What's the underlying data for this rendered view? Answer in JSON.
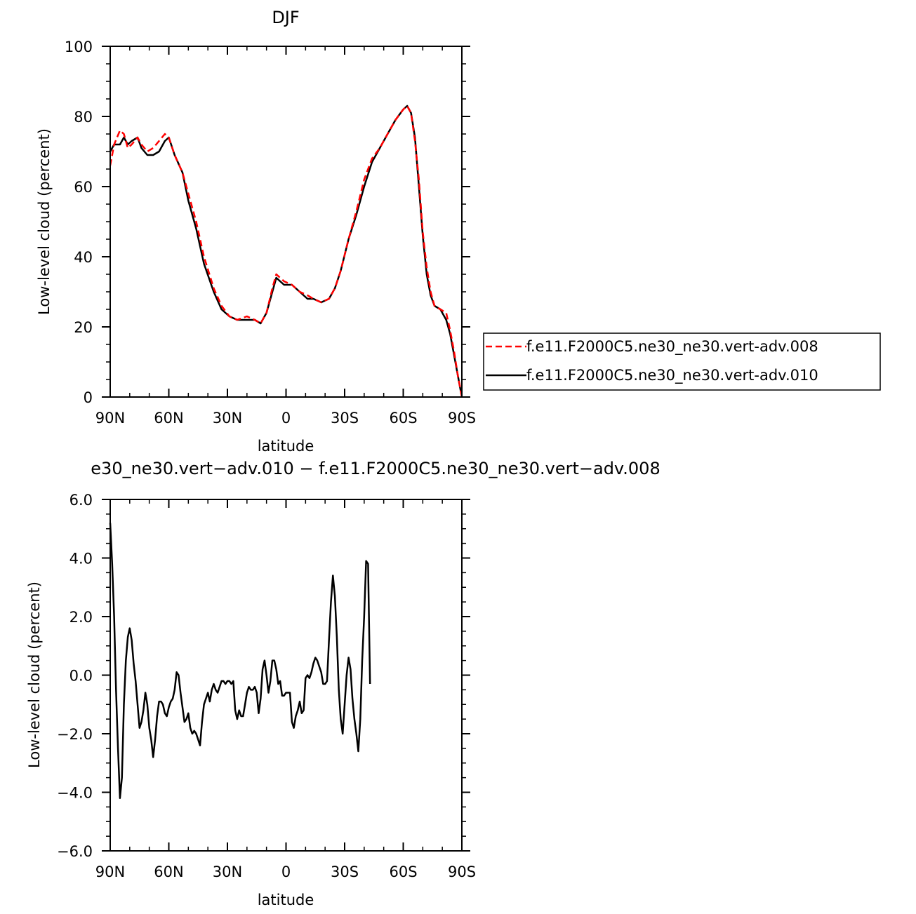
{
  "chart_data": [
    {
      "type": "line",
      "title": "DJF",
      "xlabel": "latitude",
      "ylabel": "Low-level cloud (percent)",
      "xlim": [
        90,
        -90
      ],
      "ylim": [
        0,
        100
      ],
      "x_tick_values": [
        90,
        60,
        30,
        0,
        -30,
        -60,
        -90
      ],
      "x_tick_labels": [
        "90N",
        "60N",
        "30N",
        "0",
        "30S",
        "60S",
        "90S"
      ],
      "y_tick_values": [
        0,
        20,
        40,
        60,
        80,
        100
      ],
      "y_tick_labels": [
        "0",
        "20",
        "40",
        "60",
        "80",
        "100"
      ],
      "legend_position": "right",
      "series": [
        {
          "name": "f.e11.F2000C5.ne30_ne30.vert-adv.008",
          "color": "#ff0000",
          "style": "dashed",
          "points": [
            [
              90,
              66
            ],
            [
              88,
              72
            ],
            [
              85,
              76
            ],
            [
              83,
              75
            ],
            [
              81,
              71
            ],
            [
              79,
              72
            ],
            [
              76,
              74
            ],
            [
              74,
              72
            ],
            [
              71,
              70
            ],
            [
              68,
              71
            ],
            [
              65,
              73
            ],
            [
              62,
              75
            ],
            [
              60,
              74
            ],
            [
              57,
              69
            ],
            [
              53,
              64
            ],
            [
              50,
              58
            ],
            [
              46,
              50
            ],
            [
              42,
              40
            ],
            [
              37,
              31
            ],
            [
              33,
              26
            ],
            [
              29,
              23
            ],
            [
              25,
              22
            ],
            [
              20,
              23
            ],
            [
              16,
              22
            ],
            [
              13,
              21
            ],
            [
              10,
              24
            ],
            [
              7,
              31
            ],
            [
              5,
              35
            ],
            [
              3,
              34
            ],
            [
              1,
              33
            ],
            [
              -3,
              32
            ],
            [
              -7,
              30
            ],
            [
              -11,
              29
            ],
            [
              -14,
              28
            ],
            [
              -18,
              27
            ],
            [
              -22,
              28
            ],
            [
              -25,
              31
            ],
            [
              -28,
              36
            ],
            [
              -32,
              45
            ],
            [
              -36,
              53
            ],
            [
              -40,
              62
            ],
            [
              -44,
              68
            ],
            [
              -48,
              71
            ],
            [
              -52,
              75
            ],
            [
              -56,
              79
            ],
            [
              -60,
              82
            ],
            [
              -62,
              83
            ],
            [
              -64,
              81
            ],
            [
              -66,
              73
            ],
            [
              -68,
              62
            ],
            [
              -70,
              47
            ],
            [
              -72,
              37
            ],
            [
              -74,
              30
            ],
            [
              -76,
              26
            ],
            [
              -79,
              25
            ],
            [
              -82,
              24
            ],
            [
              -84,
              19
            ],
            [
              -86,
              13
            ],
            [
              -88,
              6
            ],
            [
              -90,
              0
            ]
          ]
        },
        {
          "name": "f.e11.F2000C5.ne30_ne30.vert-adv.010",
          "color": "#000000",
          "style": "solid",
          "points": [
            [
              90,
              70
            ],
            [
              88,
              72
            ],
            [
              85,
              72
            ],
            [
              83,
              74
            ],
            [
              81,
              72
            ],
            [
              79,
              73
            ],
            [
              76,
              74
            ],
            [
              74,
              71
            ],
            [
              71,
              69
            ],
            [
              68,
              69
            ],
            [
              65,
              70
            ],
            [
              62,
              73
            ],
            [
              60,
              74
            ],
            [
              57,
              69
            ],
            [
              53,
              64
            ],
            [
              50,
              56
            ],
            [
              46,
              48
            ],
            [
              42,
              38
            ],
            [
              37,
              30
            ],
            [
              33,
              25
            ],
            [
              29,
              23
            ],
            [
              25,
              22
            ],
            [
              20,
              22
            ],
            [
              16,
              22
            ],
            [
              13,
              21
            ],
            [
              10,
              24
            ],
            [
              7,
              30
            ],
            [
              5,
              34
            ],
            [
              3,
              33
            ],
            [
              1,
              32
            ],
            [
              -3,
              32
            ],
            [
              -7,
              30
            ],
            [
              -11,
              28
            ],
            [
              -14,
              28
            ],
            [
              -18,
              27
            ],
            [
              -22,
              28
            ],
            [
              -25,
              31
            ],
            [
              -28,
              36
            ],
            [
              -32,
              45
            ],
            [
              -36,
              52
            ],
            [
              -40,
              60
            ],
            [
              -44,
              67
            ],
            [
              -48,
              71
            ],
            [
              -52,
              75
            ],
            [
              -56,
              79
            ],
            [
              -60,
              82
            ],
            [
              -62,
              83
            ],
            [
              -64,
              81
            ],
            [
              -66,
              74
            ],
            [
              -68,
              60
            ],
            [
              -70,
              46
            ],
            [
              -72,
              35
            ],
            [
              -74,
              29
            ],
            [
              -76,
              26
            ],
            [
              -79,
              25
            ],
            [
              -82,
              22
            ],
            [
              -84,
              18
            ],
            [
              -86,
              12
            ],
            [
              -88,
              6
            ],
            [
              -90,
              0
            ]
          ]
        }
      ]
    },
    {
      "type": "line",
      "title": "e30_ne30.vert−adv.010 − f.e11.F2000C5.ne30_ne30.vert−adv.008",
      "xlabel": "latitude",
      "ylabel": "Low-level cloud (percent)",
      "xlim": [
        90,
        -90
      ],
      "ylim": [
        -6,
        6
      ],
      "x_tick_values": [
        90,
        60,
        30,
        0,
        -30,
        -60,
        -90
      ],
      "x_tick_labels": [
        "90N",
        "60N",
        "30N",
        "0",
        "30S",
        "60S",
        "90S"
      ],
      "y_tick_values": [
        -6,
        -4,
        -2,
        0,
        2,
        4,
        6
      ],
      "y_tick_labels": [
        "−6.0",
        "−4.0",
        "−2.0",
        "0.0",
        "2.0",
        "4.0",
        "6.0"
      ],
      "series": [
        {
          "name": "",
          "color": "#000000",
          "style": "solid",
          "points": [
            [
              90,
              5.2
            ],
            [
              89,
              3.8
            ],
            [
              88,
              2.0
            ],
            [
              87,
              -0.5
            ],
            [
              86,
              -2.5
            ],
            [
              85,
              -4.2
            ],
            [
              84,
              -3.5
            ],
            [
              83,
              -1.0
            ],
            [
              82,
              0.5
            ],
            [
              81,
              1.3
            ],
            [
              80,
              1.6
            ],
            [
              79,
              1.2
            ],
            [
              78,
              0.4
            ],
            [
              77,
              -0.2
            ],
            [
              76,
              -1.0
            ],
            [
              75,
              -1.8
            ],
            [
              74,
              -1.6
            ],
            [
              73,
              -1.2
            ],
            [
              72,
              -0.6
            ],
            [
              71,
              -1.0
            ],
            [
              70,
              -1.8
            ],
            [
              69,
              -2.2
            ],
            [
              68,
              -2.8
            ],
            [
              67,
              -2.2
            ],
            [
              66,
              -1.4
            ],
            [
              65,
              -0.9
            ],
            [
              64,
              -0.9
            ],
            [
              63,
              -1.0
            ],
            [
              62,
              -1.3
            ],
            [
              61,
              -1.4
            ],
            [
              60,
              -1.1
            ],
            [
              59,
              -0.9
            ],
            [
              58,
              -0.8
            ],
            [
              57,
              -0.5
            ],
            [
              56,
              0.1
            ],
            [
              55,
              0.0
            ],
            [
              54,
              -0.6
            ],
            [
              53,
              -1.1
            ],
            [
              52,
              -1.6
            ],
            [
              51,
              -1.5
            ],
            [
              50,
              -1.3
            ],
            [
              49,
              -1.8
            ],
            [
              48,
              -2.0
            ],
            [
              47,
              -1.9
            ],
            [
              46,
              -2.0
            ],
            [
              45,
              -2.2
            ],
            [
              44,
              -2.4
            ],
            [
              43,
              -1.6
            ],
            [
              42,
              -1.0
            ],
            [
              41,
              -0.8
            ],
            [
              40,
              -0.6
            ],
            [
              39,
              -0.9
            ],
            [
              38,
              -0.5
            ],
            [
              37,
              -0.3
            ],
            [
              36,
              -0.5
            ],
            [
              35,
              -0.6
            ],
            [
              34,
              -0.4
            ],
            [
              33,
              -0.2
            ],
            [
              32,
              -0.2
            ],
            [
              31,
              -0.3
            ],
            [
              30,
              -0.2
            ],
            [
              29,
              -0.2
            ],
            [
              28,
              -0.3
            ],
            [
              27,
              -0.2
            ],
            [
              26,
              -1.2
            ],
            [
              25,
              -1.5
            ],
            [
              24,
              -1.2
            ],
            [
              23,
              -1.4
            ],
            [
              22,
              -1.4
            ],
            [
              21,
              -1.0
            ],
            [
              20,
              -0.6
            ],
            [
              19,
              -0.4
            ],
            [
              18,
              -0.5
            ],
            [
              17,
              -0.5
            ],
            [
              16,
              -0.4
            ],
            [
              15,
              -0.6
            ],
            [
              14,
              -1.3
            ],
            [
              13,
              -0.8
            ],
            [
              12,
              0.2
            ],
            [
              11,
              0.5
            ],
            [
              10,
              0.0
            ],
            [
              9,
              -0.6
            ],
            [
              8,
              -0.2
            ],
            [
              7,
              0.5
            ],
            [
              6,
              0.5
            ],
            [
              5,
              0.2
            ],
            [
              4,
              -0.3
            ],
            [
              3,
              -0.2
            ],
            [
              2,
              -0.7
            ],
            [
              1,
              -0.7
            ],
            [
              0,
              -0.6
            ],
            [
              -1,
              -0.6
            ],
            [
              -2,
              -0.6
            ],
            [
              -3,
              -1.6
            ],
            [
              -4,
              -1.8
            ],
            [
              -5,
              -1.4
            ],
            [
              -6,
              -1.2
            ],
            [
              -7,
              -0.9
            ],
            [
              -8,
              -1.3
            ],
            [
              -9,
              -1.2
            ],
            [
              -10,
              -0.1
            ],
            [
              -11,
              0.0
            ],
            [
              -12,
              -0.1
            ],
            [
              -13,
              0.1
            ],
            [
              -14,
              0.4
            ],
            [
              -15,
              0.6
            ],
            [
              -16,
              0.5
            ],
            [
              -17,
              0.3
            ],
            [
              -18,
              0.1
            ],
            [
              -19,
              -0.3
            ],
            [
              -20,
              -0.3
            ],
            [
              -21,
              -0.2
            ],
            [
              -22,
              1.2
            ],
            [
              -23,
              2.5
            ],
            [
              -24,
              3.4
            ],
            [
              -25,
              2.7
            ],
            [
              -26,
              1.3
            ],
            [
              -27,
              -0.5
            ],
            [
              -28,
              -1.5
            ],
            [
              -29,
              -2.0
            ],
            [
              -30,
              -1.0
            ],
            [
              -31,
              0.0
            ],
            [
              -32,
              0.6
            ],
            [
              -33,
              0.2
            ],
            [
              -34,
              -0.8
            ],
            [
              -35,
              -1.5
            ],
            [
              -36,
              -2.0
            ],
            [
              -37,
              -2.6
            ],
            [
              -38,
              -1.5
            ],
            [
              -39,
              0.5
            ],
            [
              -40,
              2.0
            ],
            [
              -41,
              3.9
            ],
            [
              -42,
              3.8
            ],
            [
              -43,
              -0.3
            ]
          ]
        }
      ]
    }
  ]
}
